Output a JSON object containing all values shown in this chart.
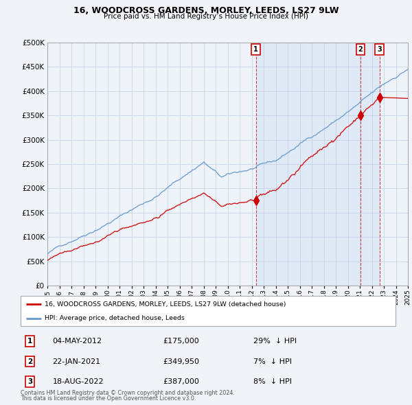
{
  "title": "16, WOODCROSS GARDENS, MORLEY, LEEDS, LS27 9LW",
  "subtitle": "Price paid vs. HM Land Registry’s House Price Index (HPI)",
  "legend_property": "16, WOODCROSS GARDENS, MORLEY, LEEDS, LS27 9LW (detached house)",
  "legend_hpi": "HPI: Average price, detached house, Leeds",
  "footer1": "Contains HM Land Registry data © Crown copyright and database right 2024.",
  "footer2": "This data is licensed under the Open Government Licence v3.0.",
  "property_color": "#cc0000",
  "hpi_color": "#6699cc",
  "shade_color": "#ddeeff",
  "sale_points": [
    {
      "n": 1,
      "date": "04-MAY-2012",
      "price": 175000,
      "pct": "29%",
      "dir": "↓"
    },
    {
      "n": 2,
      "date": "22-JAN-2021",
      "price": 349950,
      "pct": "7%",
      "dir": "↓"
    },
    {
      "n": 3,
      "date": "18-AUG-2022",
      "price": 387000,
      "pct": "8%",
      "dir": "↓"
    }
  ],
  "sale_years": [
    2012.35,
    2021.06,
    2022.63
  ],
  "ylim": [
    0,
    500000
  ],
  "yticks": [
    0,
    50000,
    100000,
    150000,
    200000,
    250000,
    300000,
    350000,
    400000,
    450000,
    500000
  ],
  "ytick_labels": [
    "£0",
    "£50K",
    "£100K",
    "£150K",
    "£200K",
    "£250K",
    "£300K",
    "£350K",
    "£400K",
    "£450K",
    "£500K"
  ],
  "bg_color": "#f0f4f8",
  "plot_bg": "#eef3fa",
  "grid_color": "#c8d4e8"
}
